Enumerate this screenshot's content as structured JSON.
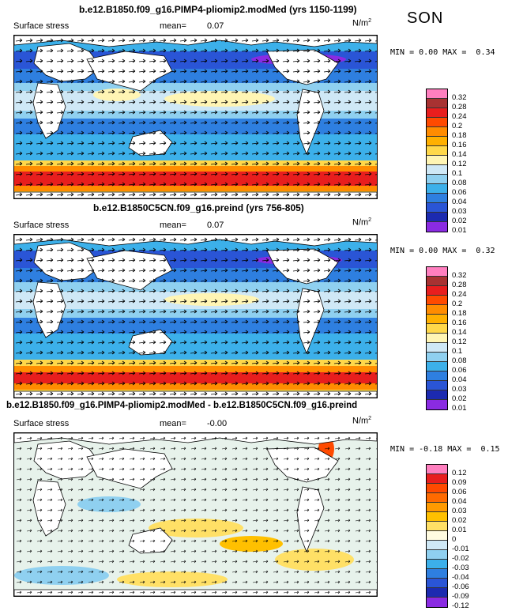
{
  "season": "SON",
  "panels": [
    {
      "title": "b.e12.B1850.f09_g16.PIMP4-pliomip2.modMed (yrs 1150-1199)",
      "field": "Surface stress",
      "mean_label": "mean=",
      "mean_value": "0.07",
      "units": "N/m",
      "units_exp": "2",
      "min_label": "MIN =",
      "min_value": "0.00",
      "max_label": "MAX =",
      "max_value": "0.34",
      "colorbar_ticks": [
        "0.32",
        "0.28",
        "0.24",
        "0.2",
        "0.18",
        "0.16",
        "0.14",
        "0.12",
        "0.1",
        "0.08",
        "0.06",
        "0.04",
        "0.03",
        "0.02",
        "0.01"
      ]
    },
    {
      "title": "b.e12.B1850C5CN.f09_g16.preind (yrs 756-805)",
      "field": "Surface stress",
      "mean_label": "mean=",
      "mean_value": "0.07",
      "units": "N/m",
      "units_exp": "2",
      "min_label": "MIN =",
      "min_value": "0.00",
      "max_label": "MAX =",
      "max_value": "0.32",
      "colorbar_ticks": [
        "0.32",
        "0.28",
        "0.24",
        "0.2",
        "0.18",
        "0.16",
        "0.14",
        "0.12",
        "0.1",
        "0.08",
        "0.06",
        "0.04",
        "0.03",
        "0.02",
        "0.01"
      ]
    },
    {
      "title": "b.e12.B1850.f09_g16.PIMP4-pliomip2.modMed - b.e12.B1850C5CN.f09_g16.preind",
      "field": "Surface stress",
      "mean_label": "mean=",
      "mean_value": "-0.00",
      "units": "N/m",
      "units_exp": "2",
      "min_label": "MIN =",
      "min_value": "-0.18",
      "max_label": "MAX =",
      "max_value": "0.15",
      "colorbar_ticks": [
        "0.12",
        "0.09",
        "0.06",
        "0.04",
        "0.03",
        "0.02",
        "0.01",
        "0",
        "-0.01",
        "-0.02",
        "-0.03",
        "-0.04",
        "-0.06",
        "-0.09",
        "-0.12"
      ]
    }
  ],
  "colors": {
    "abs_scale": [
      "#ff7fbf",
      "#a83232",
      "#e81e1e",
      "#ff4a00",
      "#ff8c00",
      "#ffb000",
      "#ffd84a",
      "#fff5b4",
      "#cfe8f6",
      "#8fd0f0",
      "#3cb0ea",
      "#2e7fe0",
      "#2a55d6",
      "#1c2ab0",
      "#8a2be2"
    ],
    "diff_scale": [
      "#ff7fbf",
      "#e81e1e",
      "#ff4a00",
      "#ff6a00",
      "#ff9a00",
      "#ffc000",
      "#ffe066",
      "#fffbe0",
      "#cfe8f6",
      "#8fd0f0",
      "#3cb0ea",
      "#2e7fe0",
      "#2a55d6",
      "#1c2ab0",
      "#8a2be2"
    ]
  }
}
